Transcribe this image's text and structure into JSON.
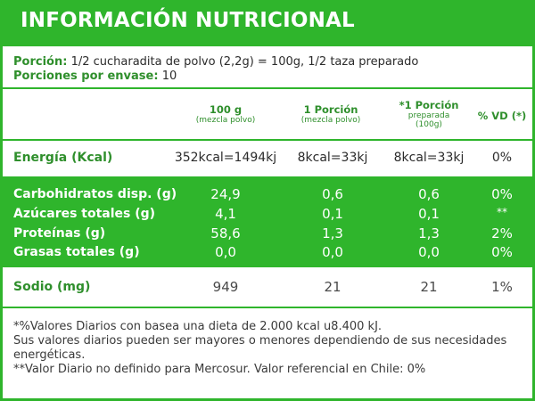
{
  "title": "INFORMACIÓN NUTRICIONAL",
  "serving": {
    "portion_label": "Porción:",
    "portion_value": "1/2 cucharadita de polvo (2,2g) = 100g, 1/2 taza preparado",
    "per_container_label": "Porciones por envase:",
    "per_container_value": "10"
  },
  "columns": [
    {
      "main": "100 g",
      "sub": "(mezcla polvo)"
    },
    {
      "main": "1 Porción",
      "sub": "(mezcla polvo)"
    },
    {
      "main": "*1 Porción",
      "sub": "preparada",
      "sub2": "(100g)"
    },
    {
      "main": "% VD (*)"
    }
  ],
  "energy": {
    "label": "Energía (Kcal)",
    "values": [
      "352kcal=1494kj",
      "8kcal=33kj",
      "8kcal=33kj",
      "0%"
    ]
  },
  "nutrients": [
    {
      "label": "Carbohidratos disp. (g)",
      "values": [
        "24,9",
        "0,6",
        "0,6",
        "0%"
      ]
    },
    {
      "label": "Azúcares totales (g)",
      "values": [
        "4,1",
        "0,1",
        "0,1",
        "**"
      ]
    },
    {
      "label": "Proteínas (g)",
      "values": [
        "58,6",
        "1,3",
        "1,3",
        "2%"
      ]
    },
    {
      "label": "Grasas totales (g)",
      "values": [
        "0,0",
        "0,0",
        "0,0",
        "0%"
      ]
    }
  ],
  "sodium": {
    "label": "Sodio (mg)",
    "values": [
      "949",
      "21",
      "21",
      "1%"
    ]
  },
  "footnotes": [
    "*%Valores Diarios con basea una dieta de 2.000 kcal u8.400 kJ.",
    "Sus valores diarios pueden ser mayores o menores dependiendo de sus necesidades energéticas.",
    "**Valor Diario no definido para Mercosur.  Valor referencial en Chile: 0%"
  ],
  "colors": {
    "accent": "#2fb52c",
    "label_green": "#2f8f2c",
    "text": "#2b2b2b"
  }
}
